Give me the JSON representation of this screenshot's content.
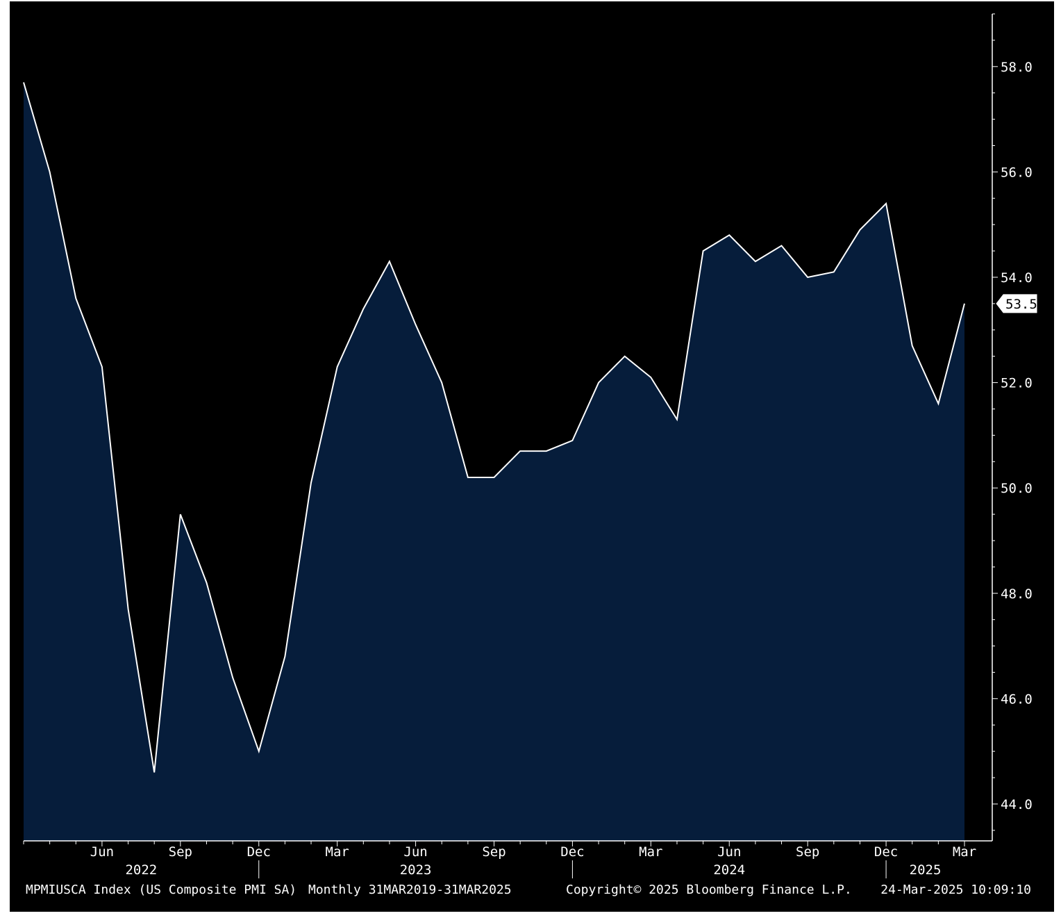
{
  "chart_data": {
    "type": "area",
    "series": [
      {
        "values": [
          57.7,
          56.0,
          53.6,
          52.3,
          47.7,
          44.6,
          49.5,
          48.2,
          46.4,
          45.0,
          46.8,
          50.1,
          52.3,
          53.4,
          54.3,
          53.1,
          52.0,
          50.2,
          50.2,
          50.7,
          50.7,
          50.9,
          52.0,
          52.5,
          52.1,
          51.3,
          54.5,
          54.8,
          54.3,
          54.6,
          54.0,
          54.1,
          54.9,
          55.4,
          52.7,
          51.6,
          53.5
        ]
      }
    ],
    "x_months_start": "Mar 2022",
    "x_months_end": "Mar 2025",
    "ylim": [
      43.3,
      59.0
    ],
    "yticks": [
      "44.0",
      "46.0",
      "48.0",
      "50.0",
      "52.0",
      "54.0",
      "56.0",
      "58.0"
    ],
    "x_tick_labels": [
      {
        "label": "Jun",
        "index": 3
      },
      {
        "label": "Sep",
        "index": 6
      },
      {
        "label": "Dec",
        "index": 9
      },
      {
        "label": "Mar",
        "index": 12
      },
      {
        "label": "Jun",
        "index": 15
      },
      {
        "label": "Sep",
        "index": 18
      },
      {
        "label": "Dec",
        "index": 21
      },
      {
        "label": "Mar",
        "index": 24
      },
      {
        "label": "Jun",
        "index": 27
      },
      {
        "label": "Sep",
        "index": 30
      },
      {
        "label": "Dec",
        "index": 33
      },
      {
        "label": "Mar",
        "index": 36
      }
    ],
    "year_labels": [
      {
        "label": "2022",
        "index": 4.5
      },
      {
        "label": "2023",
        "index": 15
      },
      {
        "label": "2024",
        "index": 27
      },
      {
        "label": "2025",
        "index": 34.5
      }
    ],
    "year_dividers": [
      9,
      21,
      33
    ],
    "last_value_label": "53.5",
    "grid": false,
    "colors": {
      "plot_background": "#000000",
      "area_fill": "#061d3b",
      "line": "#ffffff",
      "frame": "#000000",
      "text": "#ffffff"
    }
  },
  "footer": {
    "index_label": "MPMIUSCA Index (US Composite PMI SA)",
    "range_label": "Monthly 31MAR2019-31MAR2025",
    "copyright": "Copyright© 2025 Bloomberg Finance L.P.",
    "timestamp": "24-Mar-2025 10:09:10"
  }
}
